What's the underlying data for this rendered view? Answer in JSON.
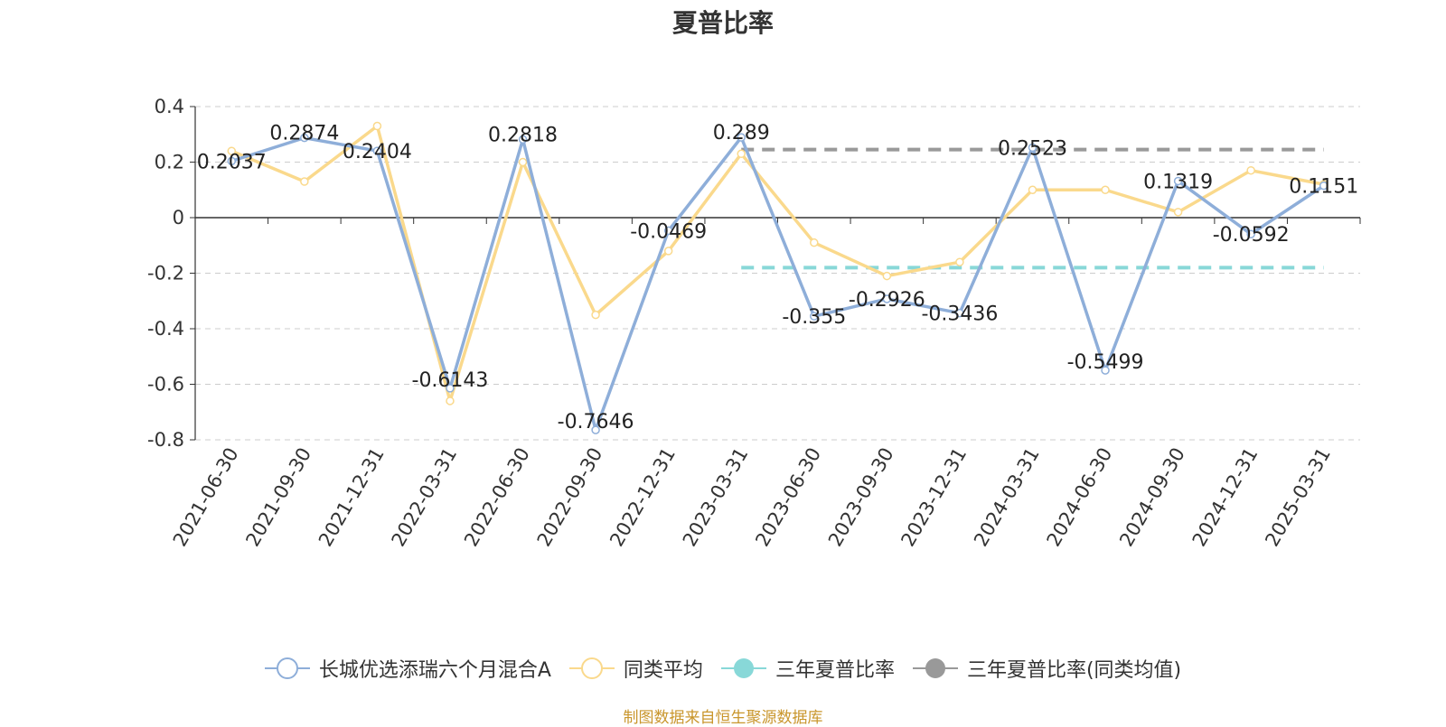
{
  "chart_data": {
    "type": "line",
    "title": "夏普比率",
    "categories": [
      "2021-06-30",
      "2021-09-30",
      "2021-12-31",
      "2022-03-31",
      "2022-06-30",
      "2022-09-30",
      "2022-12-31",
      "2023-03-31",
      "2023-06-30",
      "2023-09-30",
      "2023-12-31",
      "2024-03-31",
      "2024-06-30",
      "2024-09-30",
      "2024-12-31",
      "2025-03-31"
    ],
    "ylim": [
      -0.8,
      0.4
    ],
    "yticks": [
      "0.4",
      "0.2",
      "0",
      "-0.2",
      "-0.4",
      "-0.6",
      "-0.8"
    ],
    "ytick_values": [
      0.4,
      0.2,
      0,
      -0.2,
      -0.4,
      -0.6,
      -0.8
    ],
    "grid": true,
    "legend_position": "bottom",
    "series": [
      {
        "name": "长城优选添瑞六个月混合A",
        "color": "#8eaed9",
        "values": [
          0.2037,
          0.2874,
          0.2404,
          -0.6143,
          0.2818,
          -0.7646,
          -0.0469,
          0.289,
          -0.355,
          -0.2926,
          -0.3436,
          0.2523,
          -0.5499,
          0.1319,
          -0.0592,
          0.1151
        ],
        "labels": [
          "0.2037",
          "0.2874",
          "0.2404",
          "-0.6143",
          "0.2818",
          "-0.7646",
          "-0.0469",
          "0.289",
          "-0.355",
          "-0.2926",
          "-0.3436",
          "0.2523",
          "-0.5499",
          "0.1319",
          "-0.0592",
          "0.1151"
        ]
      },
      {
        "name": "同类平均",
        "color": "#fad98c",
        "values": [
          0.24,
          0.13,
          0.33,
          -0.66,
          0.2,
          -0.35,
          -0.12,
          0.23,
          -0.09,
          -0.21,
          -0.16,
          0.1,
          0.1,
          0.02,
          0.17,
          0.12
        ]
      },
      {
        "name": "三年夏普比率",
        "color": "#88d8d8",
        "type": "reference",
        "value": -0.18,
        "start_category": "2023-03-31",
        "end_category": "2025-03-31"
      },
      {
        "name": "三年夏普比率(同类均值)",
        "color": "#999999",
        "type": "reference",
        "value": 0.245,
        "start_category": "2023-03-31",
        "end_category": "2025-03-31"
      }
    ]
  },
  "source": "制图数据来自恒生聚源数据库"
}
